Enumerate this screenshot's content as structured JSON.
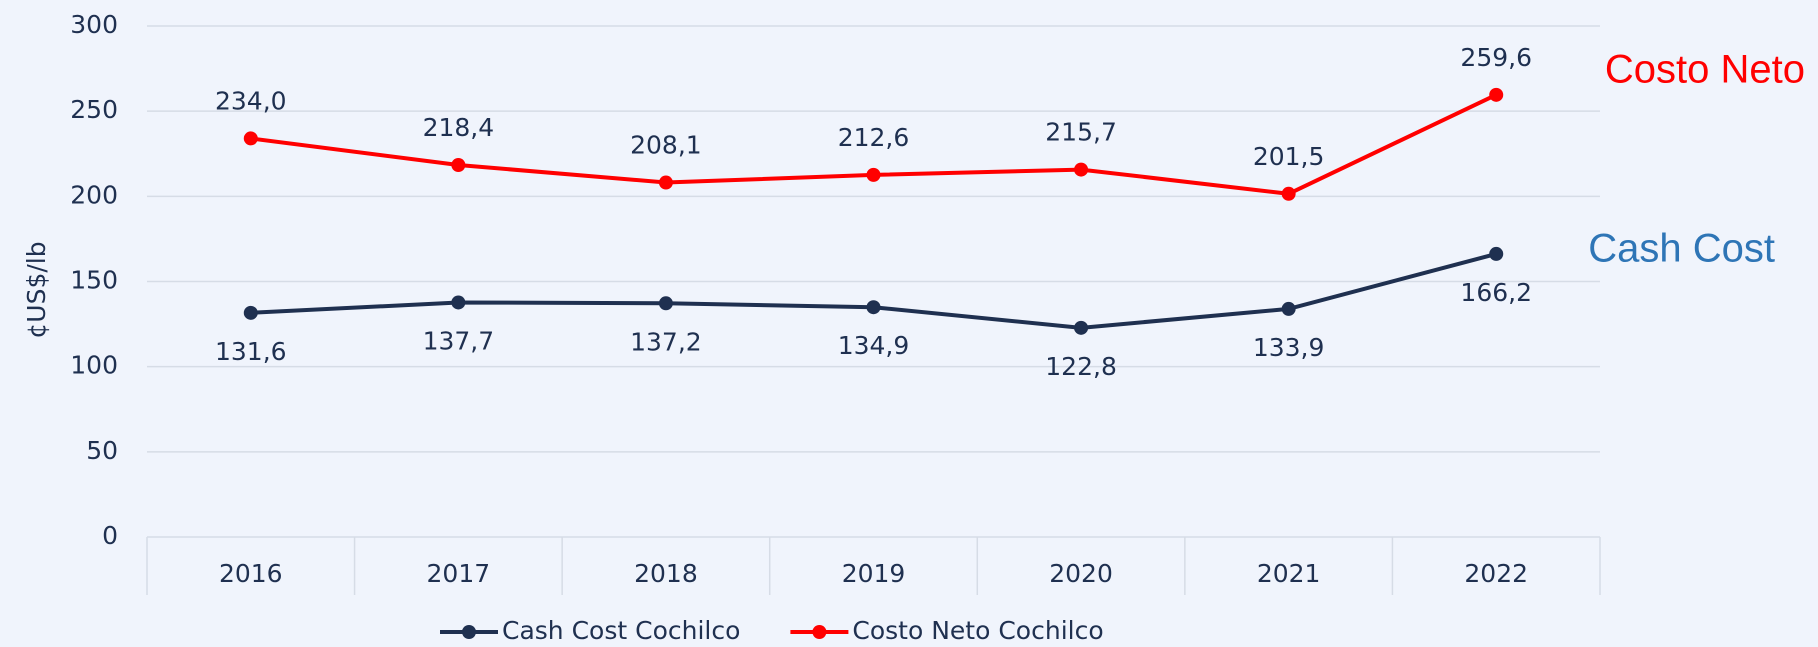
{
  "chart_data": {
    "type": "line",
    "y_label": "¢US$/lb",
    "categories": [
      "2016",
      "2017",
      "2018",
      "2019",
      "2020",
      "2021",
      "2022"
    ],
    "series": [
      {
        "name": "Cash Cost Cochilco",
        "color": "#1f3050",
        "values": [
          131.6,
          137.7,
          137.2,
          134.9,
          122.8,
          133.9,
          166.2
        ],
        "value_labels": [
          "131,6",
          "137,7",
          "137,2",
          "134,9",
          "122,8",
          "133,9",
          "166,2"
        ],
        "label_position": "below"
      },
      {
        "name": "Costo Neto Cochilco",
        "color": "#ff0000",
        "values": [
          234.0,
          218.4,
          208.1,
          212.6,
          215.7,
          201.5,
          259.6
        ],
        "value_labels": [
          "234,0",
          "218,4",
          "208,1",
          "212,6",
          "215,7",
          "201,5",
          "259,6"
        ],
        "label_position": "above"
      }
    ],
    "annotations": [
      {
        "text": "Costo Neto",
        "color": "#ff0000"
      },
      {
        "text": "Cash Cost",
        "color": "#2e75b6"
      }
    ],
    "ylim": [
      0,
      300
    ],
    "yticks": [
      0,
      50,
      100,
      150,
      200,
      250,
      300
    ],
    "grid": true,
    "legend": "bottom"
  }
}
